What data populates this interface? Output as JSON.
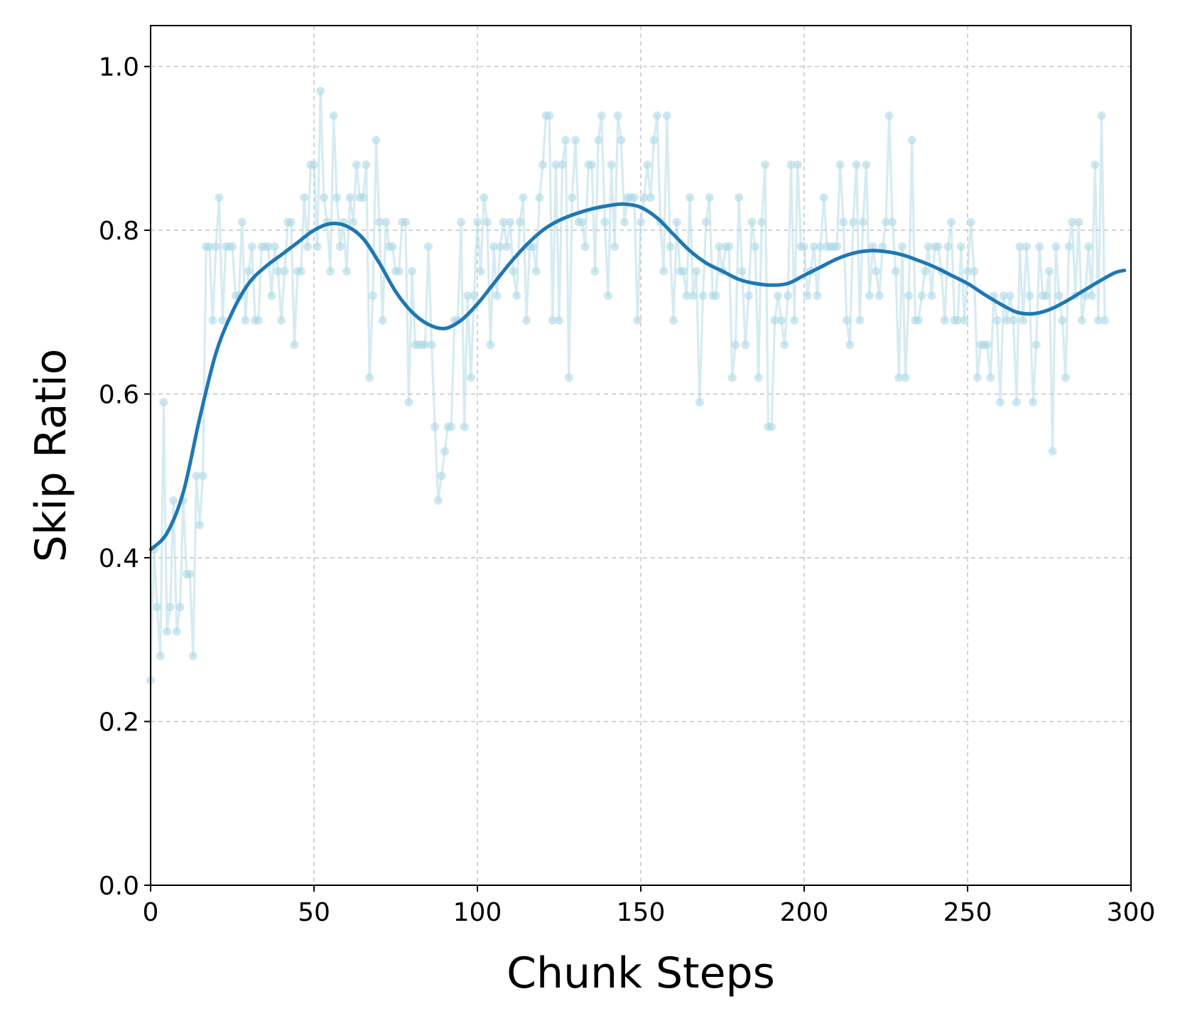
{
  "chart_data": {
    "type": "line",
    "xlabel": "Chunk Steps",
    "ylabel": "Skip Ratio",
    "xlim": [
      0,
      300
    ],
    "ylim": [
      0.0,
      1.05
    ],
    "xticks": [
      0,
      50,
      100,
      150,
      200,
      250,
      300
    ],
    "xtick_labels": [
      "0",
      "50",
      "100",
      "150",
      "200",
      "250",
      "300"
    ],
    "yticks": [
      0.0,
      0.2,
      0.4,
      0.6,
      0.8,
      1.0
    ],
    "ytick_labels": [
      "0.0",
      "0.2",
      "0.4",
      "0.6",
      "0.8",
      "1.0"
    ],
    "grid": true,
    "colors": {
      "raw": "#add8e6",
      "smooth": "#1f77b4"
    },
    "series": [
      {
        "style": "raw-markers",
        "x_start": 0,
        "x_step": 1,
        "values": [
          0.25,
          0.41,
          0.34,
          0.28,
          0.59,
          0.31,
          0.34,
          0.47,
          0.31,
          0.34,
          0.47,
          0.38,
          0.38,
          0.28,
          0.5,
          0.44,
          0.5,
          0.78,
          0.78,
          0.69,
          0.78,
          0.84,
          0.69,
          0.78,
          0.78,
          0.78,
          0.72,
          0.72,
          0.81,
          0.69,
          0.75,
          0.78,
          0.69,
          0.69,
          0.78,
          0.78,
          0.78,
          0.72,
          0.78,
          0.75,
          0.69,
          0.75,
          0.81,
          0.81,
          0.66,
          0.75,
          0.75,
          0.84,
          0.78,
          0.88,
          0.88,
          0.78,
          0.97,
          0.84,
          0.81,
          0.75,
          0.94,
          0.84,
          0.78,
          0.81,
          0.75,
          0.84,
          0.81,
          0.88,
          0.84,
          0.84,
          0.88,
          0.62,
          0.72,
          0.91,
          0.81,
          0.69,
          0.81,
          0.78,
          0.78,
          0.75,
          0.75,
          0.81,
          0.81,
          0.59,
          0.75,
          0.66,
          0.66,
          0.66,
          0.66,
          0.78,
          0.66,
          0.56,
          0.47,
          0.5,
          0.53,
          0.56,
          0.56,
          0.69,
          0.69,
          0.81,
          0.56,
          0.72,
          0.62,
          0.72,
          0.81,
          0.75,
          0.84,
          0.81,
          0.66,
          0.78,
          0.72,
          0.78,
          0.81,
          0.78,
          0.81,
          0.75,
          0.72,
          0.81,
          0.84,
          0.69,
          0.78,
          0.78,
          0.75,
          0.84,
          0.88,
          0.94,
          0.94,
          0.69,
          0.88,
          0.69,
          0.88,
          0.91,
          0.62,
          0.84,
          0.91,
          0.81,
          0.81,
          0.78,
          0.88,
          0.88,
          0.75,
          0.91,
          0.94,
          0.81,
          0.72,
          0.88,
          0.78,
          0.94,
          0.91,
          0.81,
          0.84,
          0.84,
          0.84,
          0.69,
          0.81,
          0.84,
          0.88,
          0.84,
          0.91,
          0.94,
          0.81,
          0.75,
          0.94,
          0.78,
          0.69,
          0.81,
          0.75,
          0.75,
          0.72,
          0.84,
          0.72,
          0.75,
          0.59,
          0.72,
          0.81,
          0.84,
          0.72,
          0.72,
          0.78,
          0.75,
          0.78,
          0.78,
          0.62,
          0.66,
          0.84,
          0.75,
          0.66,
          0.72,
          0.81,
          0.78,
          0.62,
          0.81,
          0.88,
          0.56,
          0.56,
          0.69,
          0.72,
          0.69,
          0.66,
          0.72,
          0.88,
          0.69,
          0.88,
          0.78,
          0.78,
          0.72,
          0.75,
          0.78,
          0.72,
          0.78,
          0.84,
          0.78,
          0.78,
          0.78,
          0.78,
          0.88,
          0.81,
          0.69,
          0.66,
          0.81,
          0.88,
          0.69,
          0.81,
          0.88,
          0.72,
          0.78,
          0.75,
          0.72,
          0.78,
          0.81,
          0.94,
          0.81,
          0.75,
          0.62,
          0.78,
          0.62,
          0.72,
          0.91,
          0.69,
          0.69,
          0.72,
          0.75,
          0.78,
          0.72,
          0.78,
          0.78,
          0.75,
          0.69,
          0.78,
          0.81,
          0.69,
          0.69,
          0.78,
          0.69,
          0.75,
          0.81,
          0.75,
          0.62,
          0.66,
          0.66,
          0.66,
          0.62,
          0.72,
          0.69,
          0.59,
          0.72,
          0.69,
          0.72,
          0.69,
          0.59,
          0.78,
          0.69,
          0.78,
          0.72,
          0.59,
          0.66,
          0.78,
          0.72,
          0.72,
          0.75,
          0.53,
          0.78,
          0.72,
          0.69,
          0.62,
          0.78,
          0.81,
          0.72,
          0.81,
          0.69,
          0.72,
          0.78,
          0.72,
          0.88,
          0.69,
          0.94,
          0.69
        ]
      },
      {
        "style": "smoothed-line",
        "x": [
          0,
          5,
          10,
          15,
          20,
          25,
          30,
          35,
          40,
          45,
          50,
          55,
          60,
          65,
          70,
          75,
          80,
          85,
          90,
          95,
          100,
          105,
          110,
          115,
          120,
          125,
          130,
          135,
          140,
          145,
          150,
          155,
          160,
          165,
          170,
          175,
          180,
          185,
          190,
          195,
          200,
          205,
          210,
          215,
          220,
          225,
          230,
          235,
          240,
          245,
          250,
          255,
          260,
          265,
          270,
          275,
          280,
          285,
          290,
          295,
          298
        ],
        "values": [
          0.41,
          0.43,
          0.48,
          0.57,
          0.65,
          0.7,
          0.735,
          0.755,
          0.77,
          0.785,
          0.8,
          0.808,
          0.805,
          0.79,
          0.76,
          0.725,
          0.7,
          0.685,
          0.68,
          0.69,
          0.71,
          0.735,
          0.76,
          0.782,
          0.8,
          0.812,
          0.82,
          0.826,
          0.83,
          0.832,
          0.828,
          0.815,
          0.795,
          0.775,
          0.76,
          0.75,
          0.74,
          0.735,
          0.733,
          0.735,
          0.745,
          0.755,
          0.765,
          0.772,
          0.775,
          0.774,
          0.77,
          0.763,
          0.755,
          0.745,
          0.735,
          0.722,
          0.71,
          0.7,
          0.698,
          0.703,
          0.713,
          0.725,
          0.737,
          0.748,
          0.751
        ]
      }
    ]
  }
}
